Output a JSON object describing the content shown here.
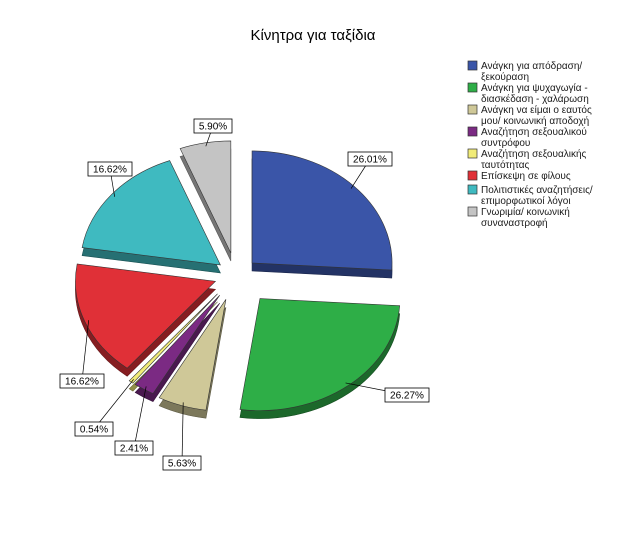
{
  "chart_data": {
    "type": "pie",
    "exploded_3d": true,
    "title": "Κίνητρα για ταξίδια",
    "legend_position": "top-right",
    "categories": [
      "Ανάγκη για απόδραση/ ξεκούραση",
      "Ανάγκη για ψυχαγωγία - διασκέδαση - χαλάρωση",
      "Ανάγκη να είμαι ο εαυτός μου/ κοινωνική αποδοχή",
      "Αναζήτηση σεξουαλικού συντρόφου",
      "Αναζήτηση σεξουαλικής ταυτότητας",
      "Επίσκεψη σε φίλους",
      "Πολιτιστικές αναζητήσεις/ επιμορφωτικοί λόγοι",
      "Γνωριμία/ κοινωνική συναναστροφή"
    ],
    "legend_lines": [
      [
        "Ανάγκη για απόδραση/",
        "ξεκούραση"
      ],
      [
        "Ανάγκη για ψυχαγωγία -",
        "διασκέδαση - χαλάρωση"
      ],
      [
        " Ανάγκη να είμαι ο εαυτός",
        "μου/ κοινωνική αποδοχή"
      ],
      [
        "Αναζήτηση σεξουαλικού",
        "συντρόφου"
      ],
      [
        "Αναζήτηση σεξουαλικής",
        "ταυτότητας"
      ],
      [
        "Επίσκεψη σε φίλους"
      ],
      [
        "Πολιτιστικές αναζητήσεις/",
        "επιμορφωτικοί λόγοι"
      ],
      [
        "Γνωριμία/ κοινωνική",
        "συναναστροφή"
      ]
    ],
    "values": [
      26.01,
      26.27,
      5.63,
      2.41,
      0.54,
      16.62,
      16.62,
      5.9
    ],
    "labels": [
      "26.01%",
      "26.27%",
      "5.63%",
      "2.41%",
      "0.54%",
      "16.62%",
      "16.62%",
      "5.90%"
    ],
    "colors": [
      "#3a55a8",
      "#2eae47",
      "#cfc898",
      "#7b2a83",
      "#f1ec78",
      "#e03037",
      "#3fbac0",
      "#c4c4c4"
    ]
  }
}
